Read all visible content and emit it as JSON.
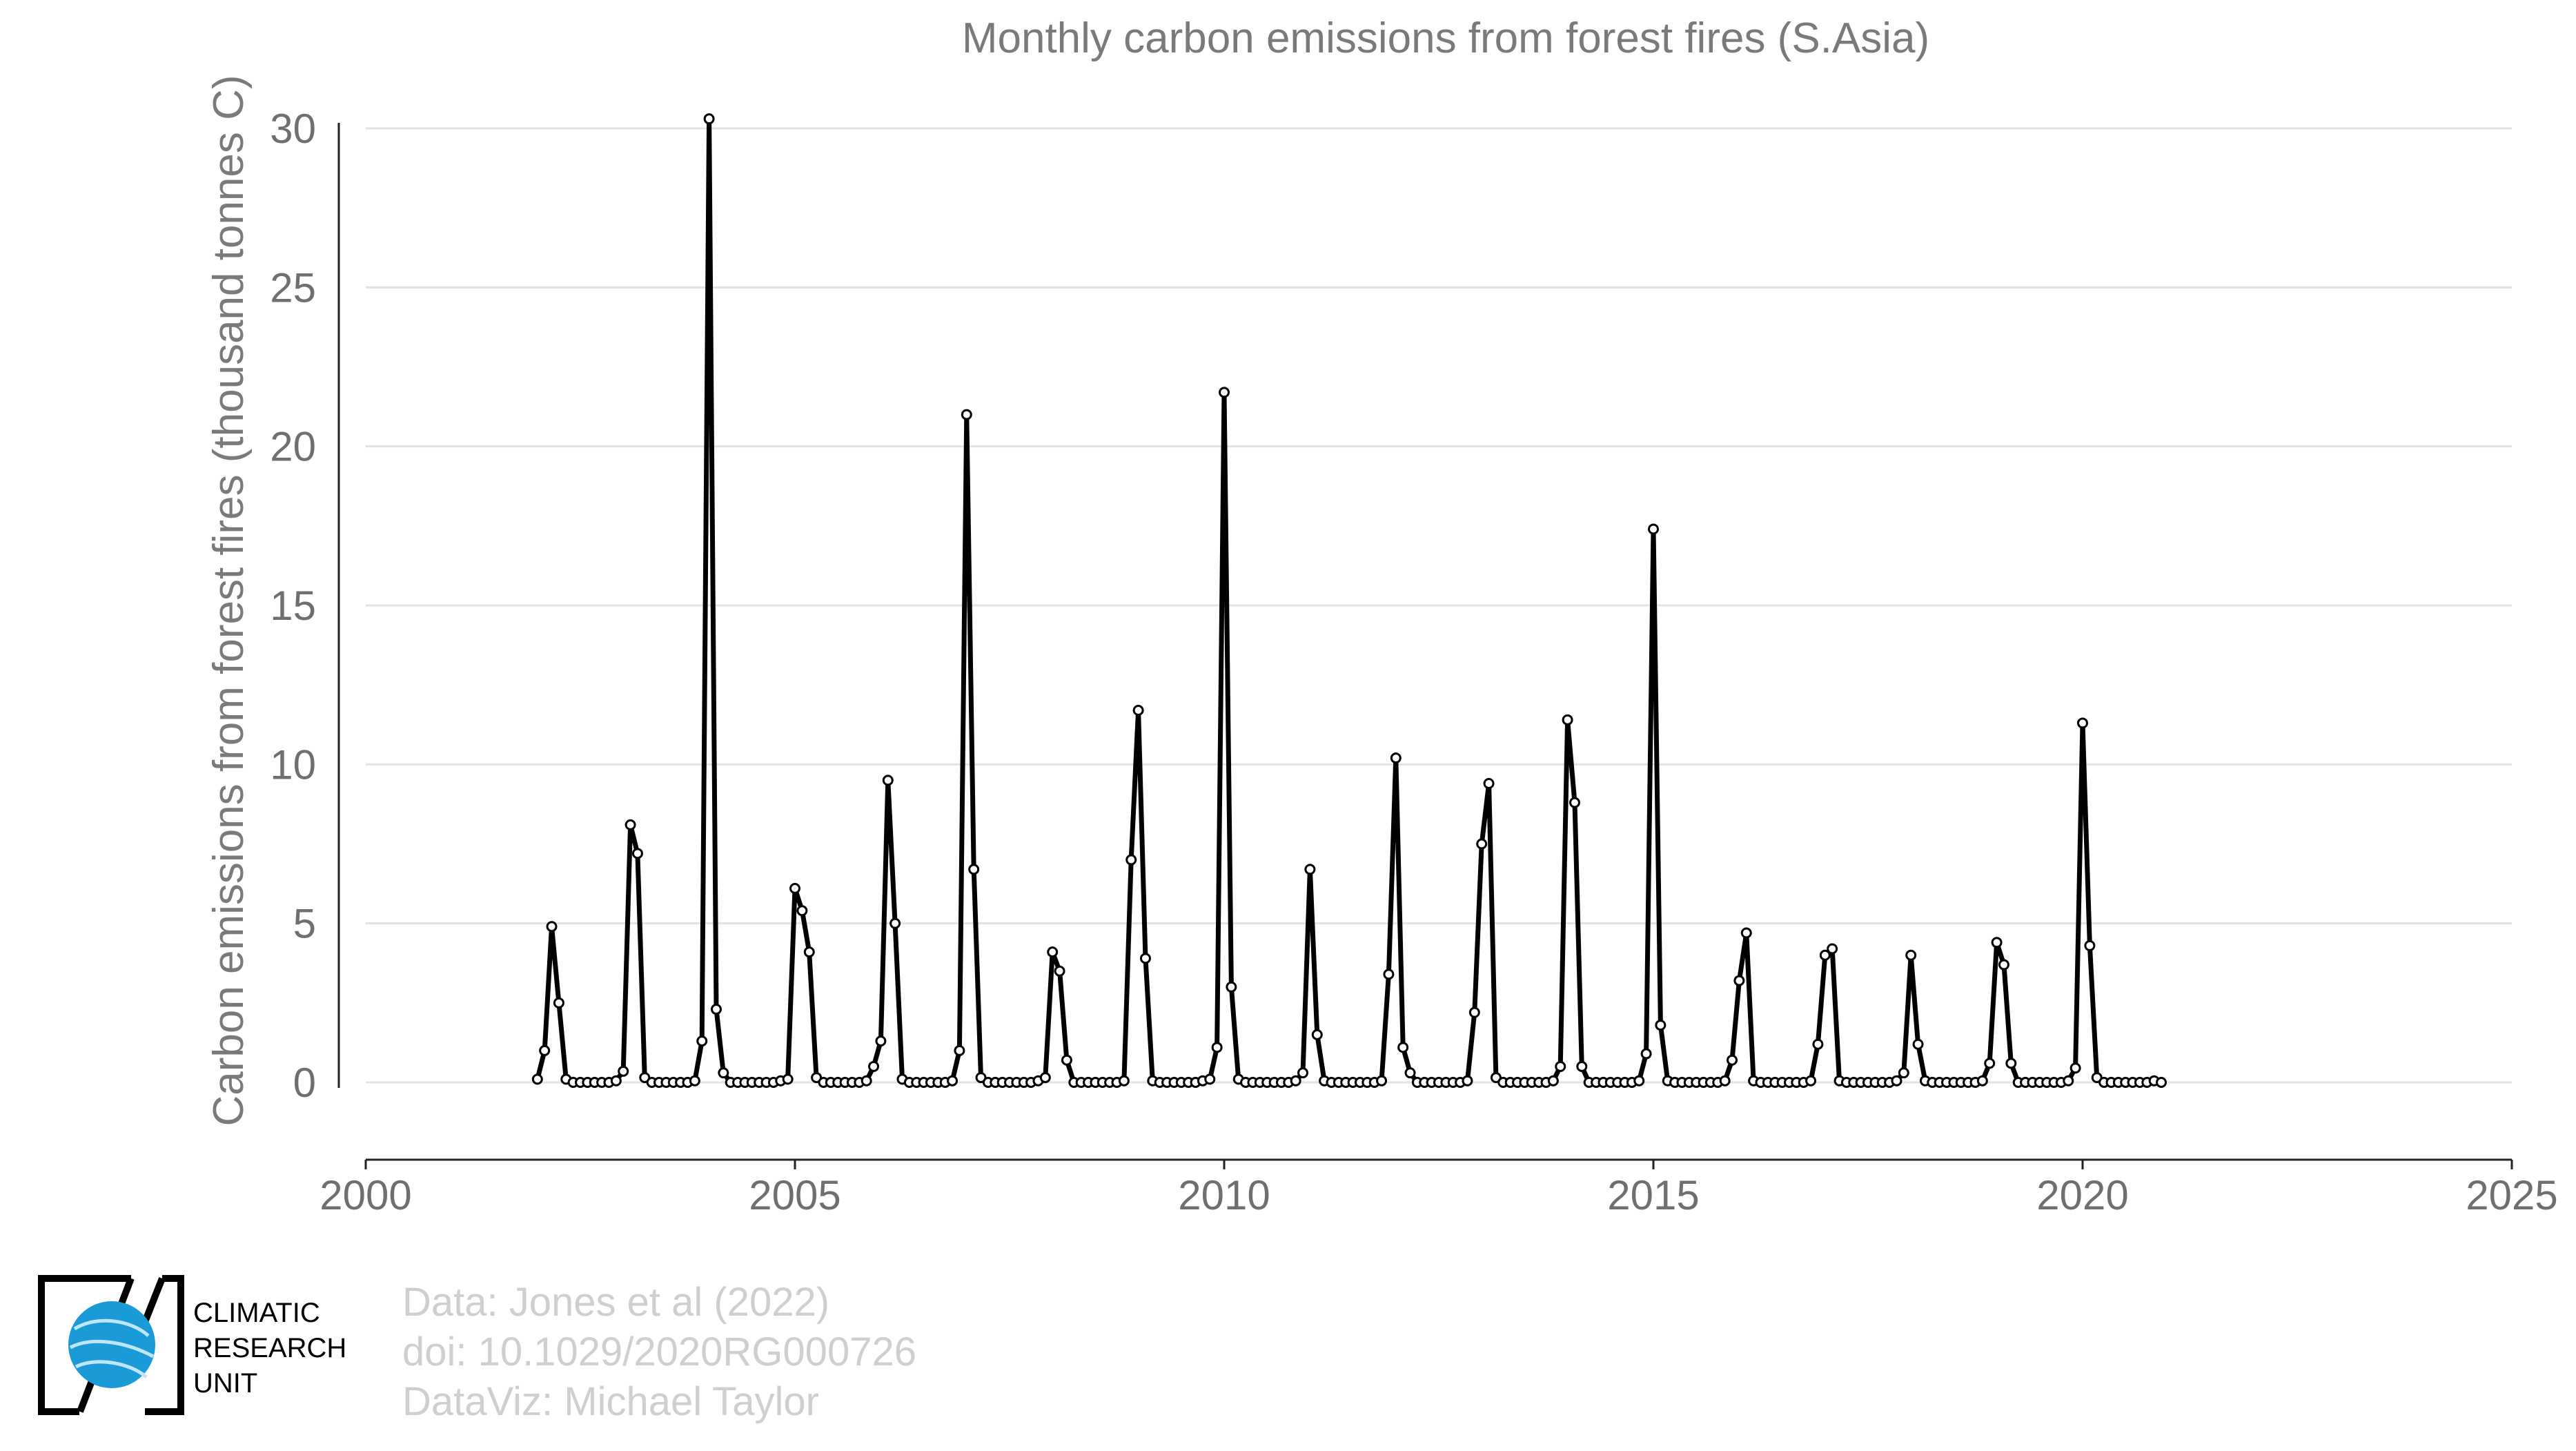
{
  "chart_data": {
    "type": "line",
    "title": "Monthly carbon emissions from forest fires (S.Asia)",
    "xlabel": "",
    "ylabel": "Carbon emissions from forest fires (thousand tonnes C)",
    "xlim": [
      2000,
      2025
    ],
    "ylim": [
      -2.4,
      30.5
    ],
    "x_ticks": [
      2000,
      2005,
      2010,
      2015,
      2020,
      2025
    ],
    "y_ticks": [
      0,
      5,
      10,
      15,
      20,
      25,
      30
    ],
    "grid": "horizontal",
    "legend": "none",
    "line_color": "#000000",
    "marker": "open circle",
    "start_year": 2002,
    "start_month": 1,
    "series": [
      {
        "values": [
          0.1,
          1.0,
          4.9,
          2.5,
          0.1,
          0,
          0,
          0,
          0,
          0,
          0,
          0.05,
          0.35,
          8.1,
          7.2,
          0.15,
          0,
          0,
          0,
          0,
          0,
          0,
          0.05,
          1.3,
          30.3,
          2.3,
          0.3,
          0,
          0,
          0,
          0,
          0,
          0,
          0,
          0.05,
          0.1,
          6.1,
          5.4,
          4.1,
          0.15,
          0,
          0,
          0,
          0,
          0,
          0,
          0.05,
          0.5,
          1.3,
          9.5,
          5.0,
          0.1,
          0,
          0,
          0,
          0,
          0,
          0,
          0.05,
          1.0,
          21.0,
          6.7,
          0.15,
          0,
          0,
          0,
          0,
          0,
          0,
          0,
          0.05,
          0.15,
          4.1,
          3.5,
          0.7,
          0,
          0,
          0,
          0,
          0,
          0,
          0,
          0.05,
          7.0,
          11.7,
          3.9,
          0.05,
          0,
          0,
          0,
          0,
          0,
          0,
          0.05,
          0.1,
          1.1,
          21.7,
          3.0,
          0.1,
          0,
          0,
          0,
          0,
          0,
          0,
          0,
          0.05,
          0.3,
          6.7,
          1.5,
          0.05,
          0,
          0,
          0,
          0,
          0,
          0,
          0,
          0.05,
          3.4,
          10.2,
          1.1,
          0.3,
          0,
          0,
          0,
          0,
          0,
          0,
          0,
          0.05,
          2.2,
          7.5,
          9.4,
          0.15,
          0,
          0,
          0,
          0,
          0,
          0,
          0,
          0.05,
          0.5,
          11.4,
          8.8,
          0.5,
          0,
          0,
          0,
          0,
          0,
          0,
          0,
          0.05,
          0.9,
          17.4,
          1.8,
          0.05,
          0,
          0,
          0,
          0,
          0,
          0,
          0,
          0.05,
          0.7,
          3.2,
          4.7,
          0.05,
          0,
          0,
          0,
          0,
          0,
          0,
          0,
          0.05,
          1.2,
          4.0,
          4.2,
          0.05,
          0,
          0,
          0,
          0,
          0,
          0,
          0,
          0.05,
          0.3,
          4.0,
          1.2,
          0.05,
          0,
          0,
          0,
          0,
          0,
          0,
          0,
          0.05,
          0.6,
          4.4,
          3.7,
          0.6,
          0,
          0,
          0,
          0,
          0,
          0,
          0,
          0.05,
          0.45,
          11.3,
          4.3,
          0.15,
          0,
          0,
          0,
          0,
          0,
          0,
          0,
          0.05,
          0
        ]
      }
    ]
  },
  "credits": {
    "line1": "Data: Jones et al (2022)",
    "line2": "doi: 10.1029/2020RG000726",
    "line3": "DataViz: Michael Taylor"
  },
  "logo": {
    "line1": "CLIMATIC",
    "line2": "RESEARCH",
    "line3": "UNIT",
    "globe_color": "#1a9ad6"
  }
}
